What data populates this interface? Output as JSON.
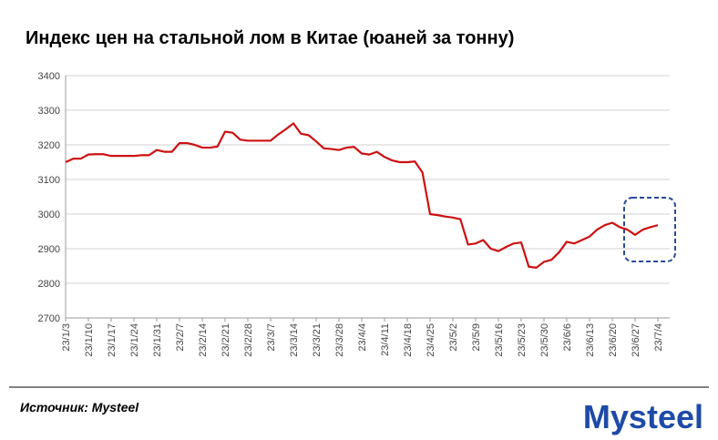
{
  "chart_data": {
    "type": "line",
    "title": "Индекс цен на стальной лом в Китае (юаней за тонну)",
    "source": "Источник: Mysteel",
    "logo": "Mysteel",
    "categories": [
      "23/1/3",
      null,
      null,
      "23/1/10",
      null,
      null,
      "23/1/17",
      null,
      null,
      "23/1/24",
      null,
      null,
      "23/1/31",
      null,
      null,
      "23/2/7",
      null,
      null,
      "23/2/14",
      null,
      null,
      "23/2/21",
      null,
      null,
      "23/2/28",
      null,
      null,
      "23/3/7",
      null,
      null,
      "23/3/14",
      null,
      null,
      "23/3/21",
      null,
      null,
      "23/3/28",
      null,
      null,
      "23/4/4",
      null,
      null,
      "23/4/11",
      null,
      null,
      "23/4/18",
      null,
      null,
      "23/4/25",
      null,
      null,
      "23/5/2",
      null,
      null,
      "23/5/9",
      null,
      null,
      "23/5/16",
      null,
      null,
      "23/5/23",
      null,
      null,
      "23/5/30",
      null,
      null,
      "23/6/6",
      null,
      null,
      "23/6/13",
      null,
      null,
      "23/6/20",
      null,
      null,
      "23/6/27",
      null,
      null,
      "23/7/4"
    ],
    "values": [
      3150,
      3160,
      3160,
      3172,
      3173,
      3173,
      3168,
      3168,
      3168,
      3168,
      3170,
      3170,
      3185,
      3180,
      3180,
      3205,
      3205,
      3200,
      3192,
      3192,
      3195,
      3238,
      3235,
      3215,
      3212,
      3212,
      3212,
      3212,
      3230,
      3245,
      3262,
      3232,
      3228,
      3210,
      3190,
      3188,
      3185,
      3192,
      3194,
      3175,
      3172,
      3180,
      3165,
      3155,
      3150,
      3150,
      3152,
      3120,
      3000,
      2997,
      2993,
      2990,
      2985,
      2912,
      2915,
      2925,
      2900,
      2893,
      2905,
      2915,
      2918,
      2848,
      2845,
      2862,
      2868,
      2890,
      2920,
      2915,
      2925,
      2935,
      2955,
      2968,
      2975,
      2962,
      2955,
      2940,
      2955,
      2962,
      2968
    ],
    "color": "#cc1111",
    "ylim": [
      2700,
      3400
    ],
    "yticks": [
      2700,
      2800,
      2900,
      3000,
      3100,
      3200,
      3300,
      3400
    ],
    "grid": true
  }
}
